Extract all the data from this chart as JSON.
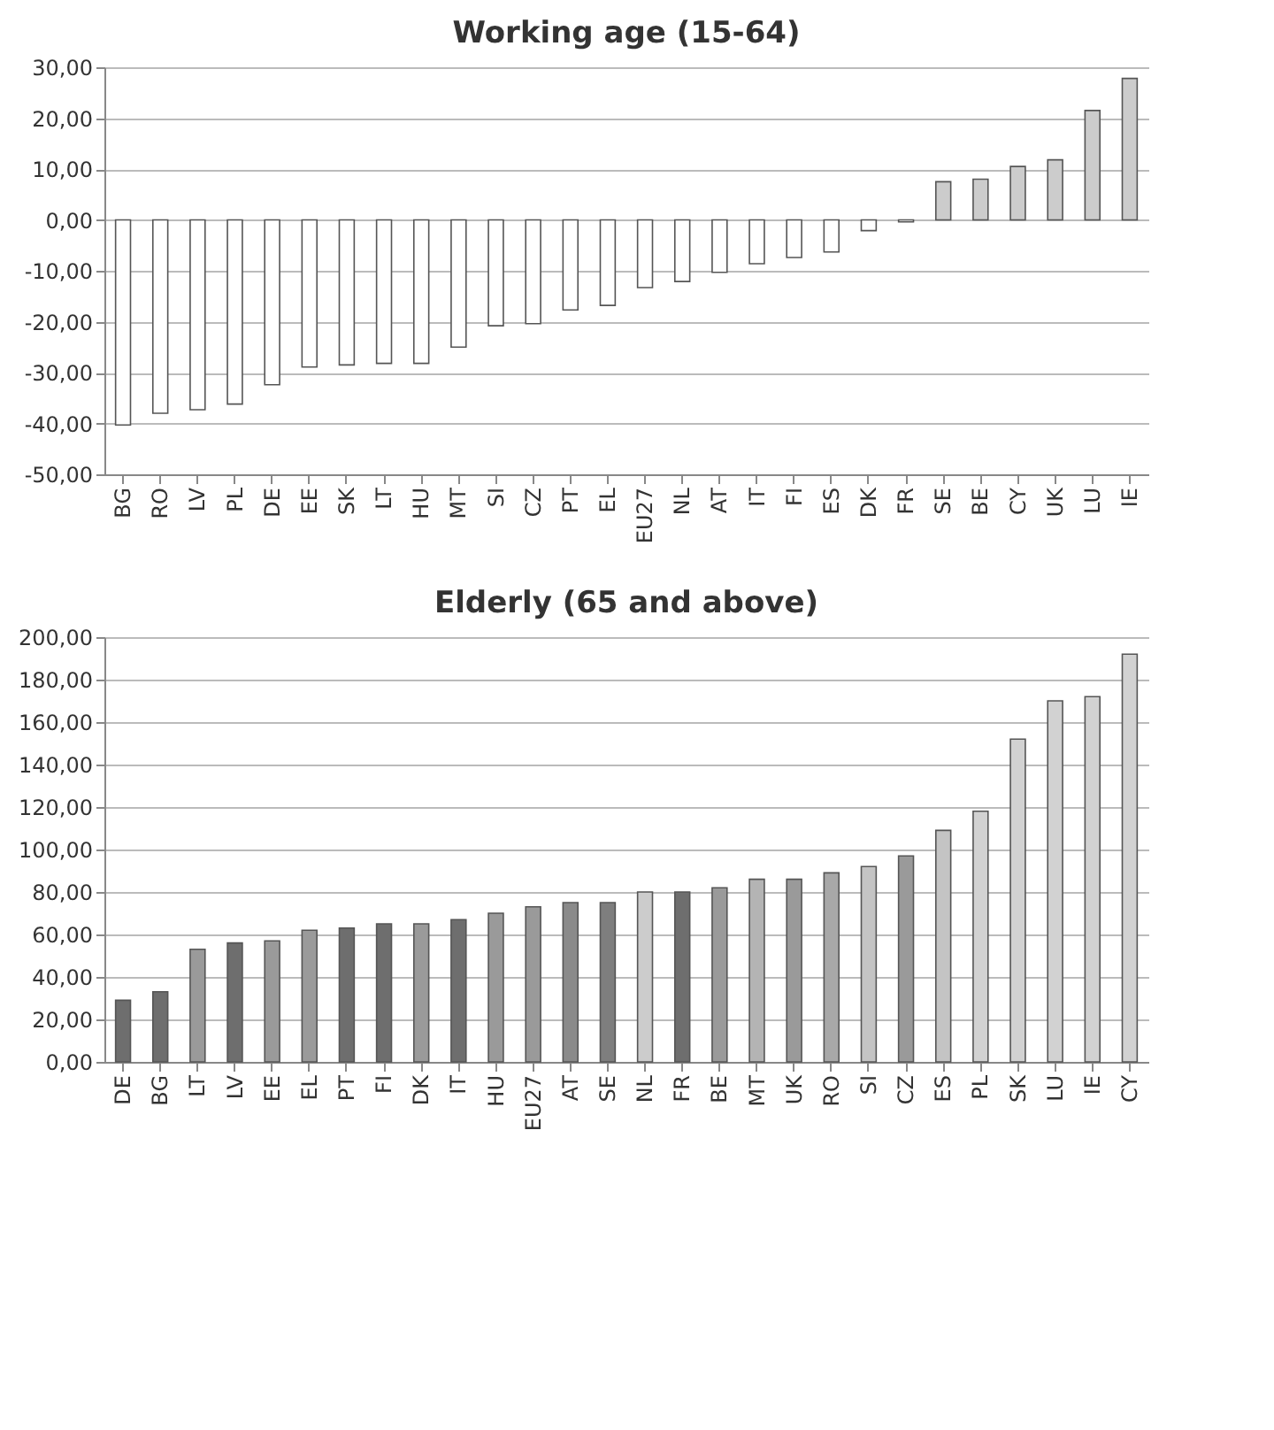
{
  "chart_data": [
    {
      "type": "bar",
      "title": "Working age (15-64)",
      "grid": "y",
      "categories": [
        "BG",
        "RO",
        "LV",
        "PL",
        "DE",
        "EE",
        "SK",
        "LT",
        "HU",
        "MT",
        "SI",
        "CZ",
        "PT",
        "EL",
        "EU27",
        "NL",
        "AT",
        "IT",
        "FI",
        "ES",
        "DK",
        "FR",
        "SE",
        "BE",
        "CY",
        "UK",
        "LU",
        "IE"
      ],
      "values": [
        -40.3,
        -38,
        -37.3,
        -36.2,
        -32.4,
        -28.9,
        -28.5,
        -28.2,
        -28.2,
        -25,
        -20.8,
        -20.4,
        -17.7,
        -16.8,
        -13.3,
        -12.1,
        -10.3,
        -8.6,
        -7.4,
        -6.3,
        -2.1,
        -0.4,
        7.5,
        8,
        10.5,
        11.8,
        21.5,
        27.8
      ],
      "colors": [
        "#ffffff",
        "#ffffff",
        "#ffffff",
        "#ffffff",
        "#ffffff",
        "#ffffff",
        "#ffffff",
        "#ffffff",
        "#ffffff",
        "#ffffff",
        "#ffffff",
        "#ffffff",
        "#ffffff",
        "#ffffff",
        "#ffffff",
        "#ffffff",
        "#ffffff",
        "#ffffff",
        "#ffffff",
        "#ffffff",
        "#ffffff",
        "#ffffff",
        "#cccccc",
        "#cccccc",
        "#cccccc",
        "#cccccc",
        "#cccccc",
        "#cccccc"
      ],
      "ylim": [
        -50,
        30
      ],
      "yticks": [
        {
          "value": -50,
          "label": "-50,00"
        },
        {
          "value": -40,
          "label": "-40,00"
        },
        {
          "value": -30,
          "label": "-30,00"
        },
        {
          "value": -20,
          "label": "-20,00"
        },
        {
          "value": -10,
          "label": "-10,00"
        },
        {
          "value": 0,
          "label": "0,00"
        },
        {
          "value": 10,
          "label": "10,00"
        },
        {
          "value": 20,
          "label": "20,00"
        },
        {
          "value": 30,
          "label": "30,00"
        }
      ]
    },
    {
      "type": "bar",
      "title": "Elderly (65 and above)",
      "grid": "y",
      "categories": [
        "DE",
        "BG",
        "LT",
        "LV",
        "EE",
        "EL",
        "PT",
        "FI",
        "DK",
        "IT",
        "HU",
        "EU27",
        "AT",
        "SE",
        "NL",
        "FR",
        "BE",
        "MT",
        "UK",
        "RO",
        "SI",
        "CZ",
        "ES",
        "PL",
        "SK",
        "LU",
        "IE",
        "CY"
      ],
      "values": [
        29,
        33,
        53,
        56,
        57,
        62,
        63,
        65,
        65,
        67,
        70,
        73,
        75,
        75,
        80,
        80,
        82,
        86,
        86,
        89,
        92,
        97,
        109,
        118,
        152,
        170,
        172,
        192
      ],
      "colors": [
        "#6e6e6e",
        "#6e6e6e",
        "#9a9a9a",
        "#6e6e6e",
        "#9a9a9a",
        "#9a9a9a",
        "#6e6e6e",
        "#6e6e6e",
        "#9a9a9a",
        "#6e6e6e",
        "#9a9a9a",
        "#9a9a9a",
        "#8a8a8a",
        "#7e7e7e",
        "#cccccc",
        "#6e6e6e",
        "#9a9a9a",
        "#b4b4b4",
        "#9a9a9a",
        "#a8a8a8",
        "#c4c4c4",
        "#9a9a9a",
        "#c4c4c4",
        "#d2d2d2",
        "#d2d2d2",
        "#d2d2d2",
        "#d2d2d2",
        "#d2d2d2"
      ],
      "ylim": [
        0,
        200
      ],
      "yticks": [
        {
          "value": 0,
          "label": "0,00"
        },
        {
          "value": 20,
          "label": "20,00"
        },
        {
          "value": 40,
          "label": "40,00"
        },
        {
          "value": 60,
          "label": "60,00"
        },
        {
          "value": 80,
          "label": "80,00"
        },
        {
          "value": 100,
          "label": "100,00"
        },
        {
          "value": 120,
          "label": "120,00"
        },
        {
          "value": 140,
          "label": "140,00"
        },
        {
          "value": 160,
          "label": "160,00"
        },
        {
          "value": 180,
          "label": "180,00"
        },
        {
          "value": 200,
          "label": "200,00"
        }
      ]
    }
  ]
}
